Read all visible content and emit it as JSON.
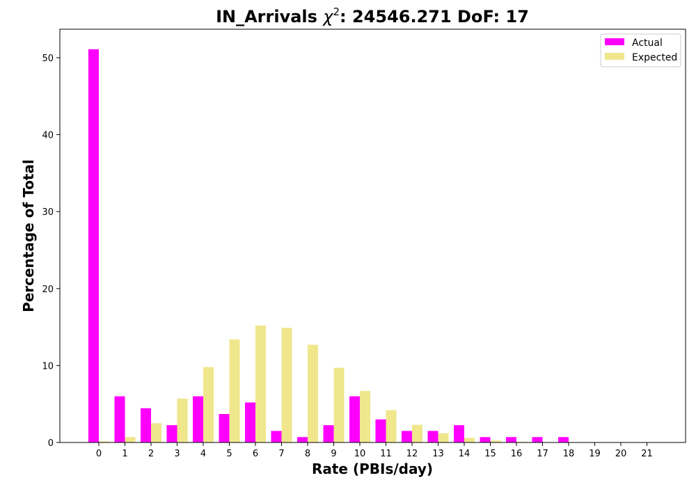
{
  "chart_data": {
    "type": "bar",
    "title_prefix": "IN_Arrivals ",
    "title_symbol": "χ",
    "title_exponent": "2",
    "title_suffix": ": 24546.271 DoF: 17",
    "xlabel": "Rate (PBIs/day)",
    "ylabel": "Percentage of Total",
    "categories": [
      "0",
      "1",
      "2",
      "3",
      "4",
      "5",
      "6",
      "7",
      "8",
      "9",
      "10",
      "11",
      "12",
      "13",
      "14",
      "15",
      "16",
      "17",
      "18",
      "19",
      "20",
      "21"
    ],
    "ylim": [
      0,
      53.7
    ],
    "yticks": [
      0,
      10,
      20,
      30,
      40,
      50
    ],
    "legend_position": "top-right",
    "series": [
      {
        "name": "Actual",
        "color": "#ff00ff",
        "values": [
          51.1,
          6.0,
          4.45,
          2.25,
          6.0,
          3.7,
          5.2,
          1.5,
          0.7,
          2.25,
          6.0,
          3.0,
          1.5,
          1.5,
          2.25,
          0.7,
          0.7,
          0.7,
          0.7,
          0,
          0,
          0
        ]
      },
      {
        "name": "Expected",
        "color": "#f0e68c",
        "values": [
          0.15,
          0.7,
          2.5,
          5.7,
          9.8,
          13.4,
          15.2,
          14.9,
          12.7,
          9.7,
          6.7,
          4.2,
          2.3,
          1.2,
          0.6,
          0.25,
          0.1,
          0.05,
          0.02,
          0,
          0,
          0
        ]
      }
    ]
  }
}
